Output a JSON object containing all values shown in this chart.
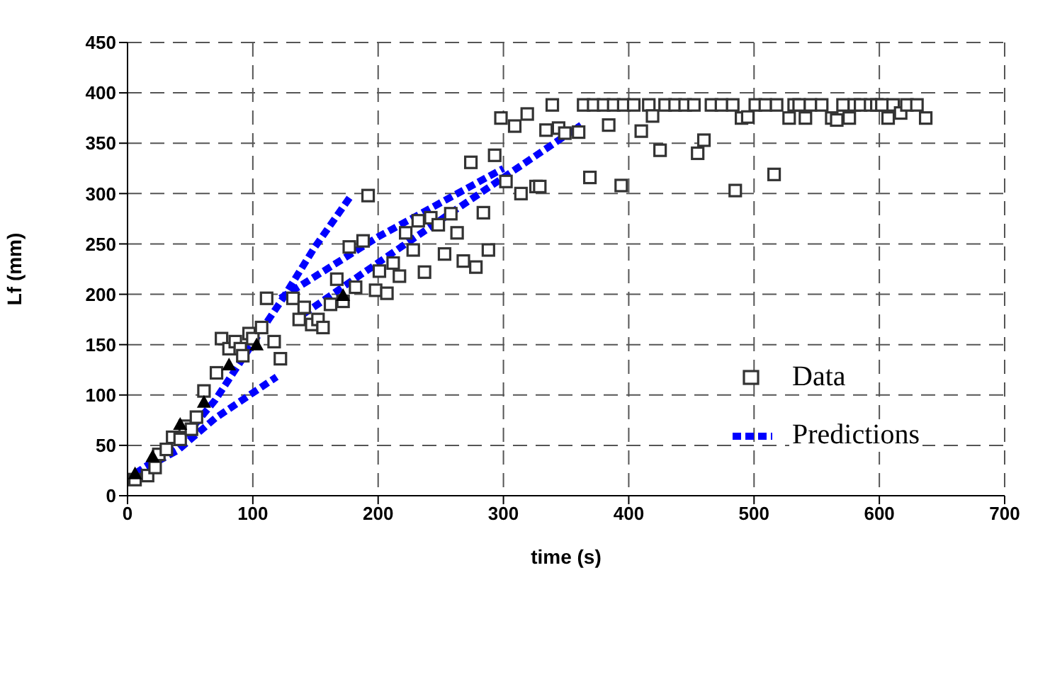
{
  "chart_data": {
    "type": "scatter",
    "xlabel": "time (s)",
    "ylabel": "Lf (mm)",
    "xlim": [
      0,
      700
    ],
    "xticks": [
      0,
      100,
      200,
      300,
      400,
      500,
      600,
      700
    ],
    "ylim": [
      0,
      450
    ],
    "yticks": [
      0,
      50,
      100,
      150,
      200,
      250,
      300,
      350,
      400,
      450
    ],
    "grid": true,
    "legend": "right",
    "series": [
      {
        "name": "Data",
        "marker": "square",
        "color": "#333333",
        "x": [
          6,
          16,
          22,
          25,
          31,
          36,
          42,
          46,
          51,
          55,
          61,
          71,
          75,
          81,
          86,
          90,
          92,
          97,
          100,
          107,
          111,
          117,
          122,
          132,
          137,
          141,
          147,
          152,
          156,
          162,
          167,
          172,
          177,
          182,
          188,
          192,
          198,
          201,
          207,
          212,
          217,
          222,
          228,
          232,
          237,
          242,
          248,
          253,
          258,
          263,
          268,
          274,
          278,
          284,
          288,
          293,
          298,
          302,
          309,
          314,
          319,
          326,
          329,
          334,
          339,
          344,
          349,
          360,
          364,
          372,
          380,
          388,
          396,
          404,
          416,
          369,
          384,
          394,
          410,
          419,
          425,
          429,
          437,
          445,
          452,
          455,
          460,
          466,
          474,
          483,
          485,
          490,
          495,
          501,
          509,
          518,
          516,
          528,
          532,
          536,
          541,
          545,
          554,
          562,
          566,
          571,
          576,
          580,
          585,
          593,
          598,
          602,
          607,
          611,
          617,
          622,
          630,
          637
        ],
        "values": [
          16,
          20,
          28,
          41,
          46,
          58,
          56,
          69,
          66,
          78,
          104,
          122,
          156,
          146,
          153,
          146,
          139,
          161,
          156,
          167,
          196,
          153,
          136,
          196,
          175,
          187,
          170,
          175,
          167,
          190,
          215,
          193,
          247,
          207,
          253,
          298,
          204,
          223,
          201,
          231,
          218,
          261,
          244,
          273,
          222,
          276,
          269,
          240,
          280,
          261,
          233,
          331,
          227,
          281,
          244,
          338,
          375,
          312,
          367,
          300,
          379,
          307,
          307,
          363,
          388,
          365,
          360,
          361,
          388,
          388,
          388,
          388,
          388,
          388,
          388,
          316,
          368,
          308,
          362,
          377,
          343,
          388,
          388,
          388,
          388,
          340,
          353,
          388,
          388,
          388,
          303,
          375,
          376,
          388,
          388,
          388,
          319,
          375,
          388,
          388,
          375,
          388,
          388,
          375,
          373,
          388,
          375,
          388,
          388,
          388,
          388,
          388,
          375,
          388,
          380,
          388,
          388,
          375
        ]
      },
      {
        "marker": "triangle",
        "color": "#000000",
        "x": [
          6,
          20,
          42,
          61,
          81,
          103,
          172
        ],
        "values": [
          22,
          39,
          71,
          93,
          130,
          150,
          199
        ]
      },
      {
        "name": "Predictions",
        "type": "line",
        "marker": "none",
        "line_style": "dashed",
        "color": "#0000ff",
        "x": [
          6,
          40,
          70,
          104,
          124,
          149,
          179,
          null,
          6,
          40,
          70,
          119,
          null,
          122,
          200,
          300,
          null,
          140,
          250,
          362
        ],
        "values": [
          22,
          50,
          95,
          159,
          196,
          246,
          299,
          null,
          22,
          45,
          77,
          118,
          null,
          196,
          257,
          325,
          null,
          180,
          274,
          368
        ]
      }
    ]
  }
}
